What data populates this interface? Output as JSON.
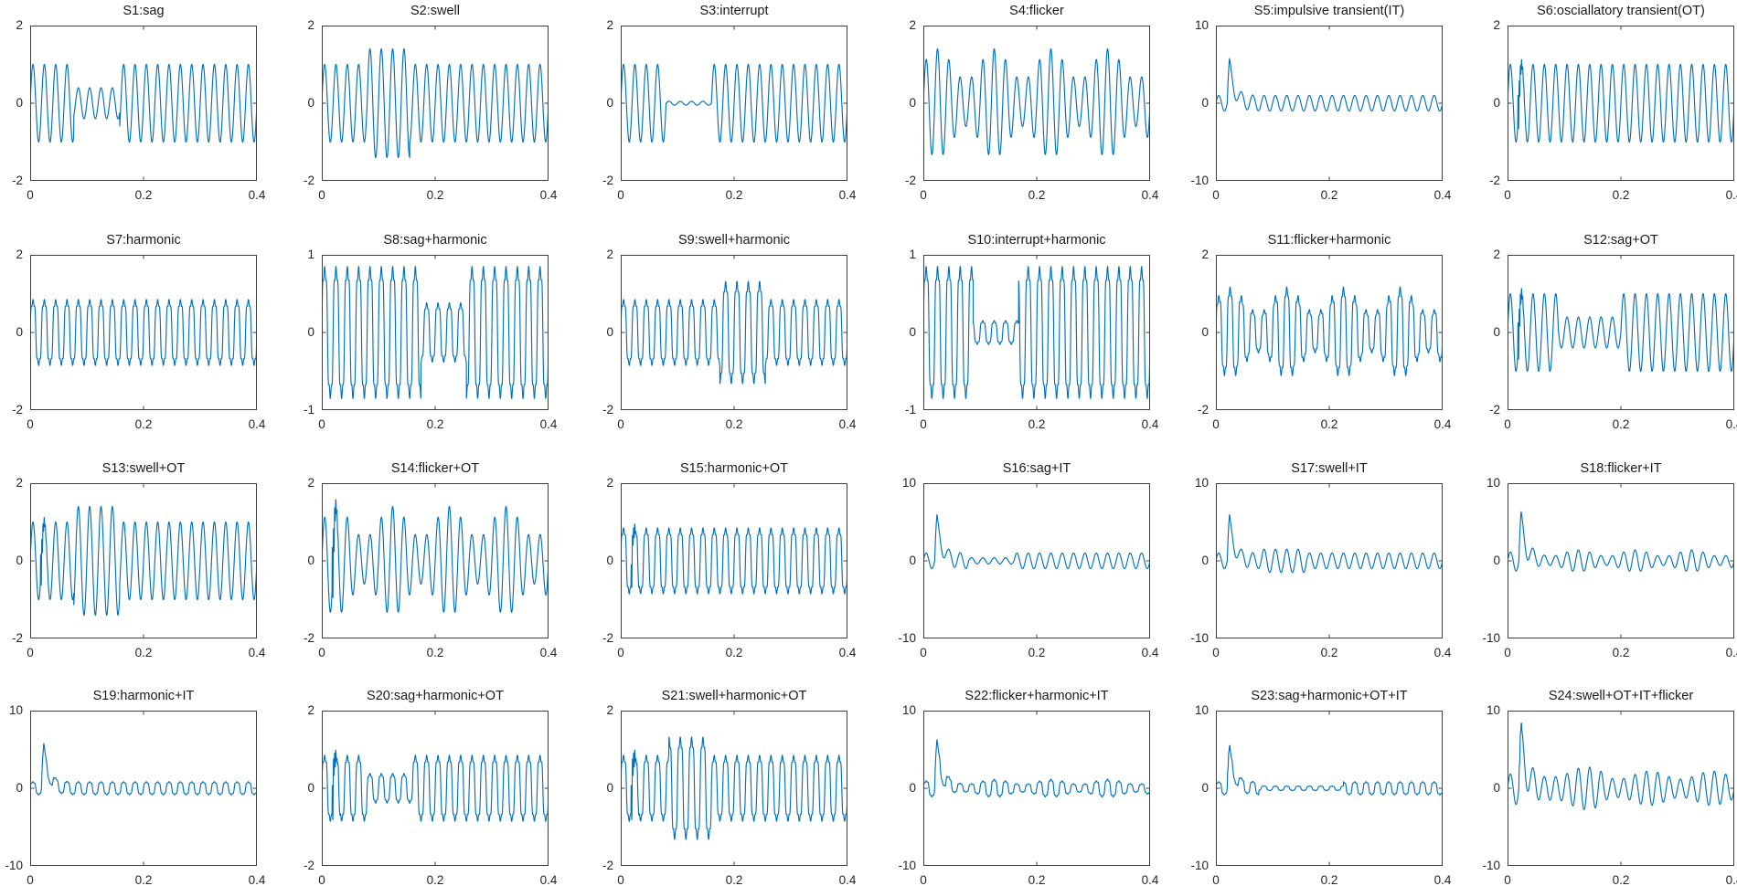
{
  "figure": {
    "background": "#ffffff",
    "line_color": "#0072BD",
    "axis_color": "#3f3f3f",
    "tick_label_color": "#262626",
    "title_color": "#1a1a1a",
    "rows": 4,
    "cols": 6
  },
  "chart_data": {
    "type": "line",
    "xlim": [
      0,
      0.4
    ],
    "xticks": [
      "0",
      "0.2",
      "0.4"
    ],
    "xtick_values": [
      0,
      0.2,
      0.4
    ],
    "duration_s": 0.4,
    "fundamental_hz": 50,
    "grid": false,
    "panels": [
      {
        "id": "S1",
        "title": "S1:sag",
        "ylim": [
          -2,
          2
        ],
        "yticks": [
          "2",
          "0",
          "-2"
        ],
        "base": "sine",
        "amp": 1,
        "window": {
          "kind": "sag",
          "from": 0.077,
          "to": 0.158,
          "gain": 0.4
        }
      },
      {
        "id": "S2",
        "title": "S2:swell",
        "ylim": [
          -2,
          2
        ],
        "yticks": [
          "2",
          "0",
          "-2"
        ],
        "base": "sine",
        "amp": 1,
        "window": {
          "kind": "swell",
          "from": 0.08,
          "to": 0.155,
          "gain": 1.4
        }
      },
      {
        "id": "S3",
        "title": "S3:interrupt",
        "ylim": [
          -2,
          2
        ],
        "yticks": [
          "2",
          "0",
          "-2"
        ],
        "base": "sine",
        "amp": 1,
        "window": {
          "kind": "interrupt",
          "from": 0.08,
          "to": 0.16,
          "gain": 0.05
        }
      },
      {
        "id": "S4",
        "title": "S4:flicker",
        "ylim": [
          -2,
          2
        ],
        "yticks": [
          "2",
          "0",
          "-2"
        ],
        "base": "sine",
        "amp": 1,
        "flicker": {
          "freq_hz": 10,
          "depth": 0.4
        }
      },
      {
        "id": "S5",
        "title": "S5:impulsive transient(IT)",
        "ylim": [
          -10,
          10
        ],
        "yticks": [
          "10",
          "0",
          "-10"
        ],
        "base": "sine",
        "amp": 1,
        "it": {
          "t0": 0.02,
          "peak": 4.8
        }
      },
      {
        "id": "S6",
        "title": "S6:osciallatory transient(OT)",
        "ylim": [
          -2,
          2
        ],
        "yticks": [
          "2",
          "0",
          "-2"
        ],
        "base": "sine",
        "amp": 1,
        "ot": {
          "t0": 0.018,
          "amp": 0.75
        }
      },
      {
        "id": "S7",
        "title": "S7:harmonic",
        "ylim": [
          -2,
          2
        ],
        "yticks": [
          "2",
          "0",
          "-2"
        ],
        "base": "harmonic",
        "amp": 1
      },
      {
        "id": "S8",
        "title": "S8:sag+harmonic",
        "ylim": [
          -1,
          1
        ],
        "yticks": [
          "1",
          "0",
          "-1"
        ],
        "base": "harmonic",
        "amp": 1,
        "window": {
          "kind": "sag",
          "from": 0.175,
          "to": 0.255,
          "gain": 0.45
        }
      },
      {
        "id": "S9",
        "title": "S9:swell+harmonic",
        "ylim": [
          -2,
          2
        ],
        "yticks": [
          "2",
          "0",
          "-2"
        ],
        "base": "harmonic",
        "amp": 1,
        "window": {
          "kind": "swell",
          "from": 0.175,
          "to": 0.255,
          "gain": 1.55
        }
      },
      {
        "id": "S10",
        "title": "S10:interrupt+harmonic",
        "ylim": [
          -1,
          1
        ],
        "yticks": [
          "1",
          "0",
          "-1"
        ],
        "base": "harmonic",
        "amp": 1,
        "window": {
          "kind": "interrupt",
          "from": 0.088,
          "to": 0.168,
          "gain": 0.18
        }
      },
      {
        "id": "S11",
        "title": "S11:flicker+harmonic",
        "ylim": [
          -2,
          2
        ],
        "yticks": [
          "2",
          "0",
          "-2"
        ],
        "base": "harmonic",
        "amp": 1,
        "flicker": {
          "freq_hz": 10,
          "depth": 0.38
        }
      },
      {
        "id": "S12",
        "title": "S12:sag+OT",
        "ylim": [
          -2,
          2
        ],
        "yticks": [
          "2",
          "0",
          "-2"
        ],
        "base": "sine",
        "amp": 1,
        "window": {
          "kind": "sag",
          "from": 0.09,
          "to": 0.2,
          "gain": 0.4
        },
        "ot": {
          "t0": 0.018,
          "amp": 0.8
        }
      },
      {
        "id": "S13",
        "title": "S13:swell+OT",
        "ylim": [
          -2,
          2
        ],
        "yticks": [
          "2",
          "0",
          "-2"
        ],
        "base": "sine",
        "amp": 1,
        "window": {
          "kind": "swell",
          "from": 0.077,
          "to": 0.158,
          "gain": 1.4
        },
        "ot": {
          "t0": 0.018,
          "amp": 0.7
        }
      },
      {
        "id": "S14",
        "title": "S14:flicker+OT",
        "ylim": [
          -2,
          2
        ],
        "yticks": [
          "2",
          "0",
          "-2"
        ],
        "base": "sine",
        "amp": 1,
        "flicker": {
          "freq_hz": 10,
          "depth": 0.4
        },
        "ot": {
          "t0": 0.018,
          "amp": 1.1
        }
      },
      {
        "id": "S15",
        "title": "S15:harmonic+OT",
        "ylim": [
          -2,
          2
        ],
        "yticks": [
          "2",
          "0",
          "-2"
        ],
        "base": "harmonic",
        "amp": 1,
        "ot": {
          "t0": 0.018,
          "amp": 0.6
        }
      },
      {
        "id": "S16",
        "title": "S16:sag+IT",
        "ylim": [
          -10,
          10
        ],
        "yticks": [
          "10",
          "0",
          "-10"
        ],
        "base": "sine",
        "amp": 1,
        "window": {
          "kind": "sag",
          "from": 0.08,
          "to": 0.16,
          "gain": 0.4
        },
        "it": {
          "t0": 0.02,
          "peak": 5
        }
      },
      {
        "id": "S17",
        "title": "S17:swell+IT",
        "ylim": [
          -10,
          10
        ],
        "yticks": [
          "10",
          "0",
          "-10"
        ],
        "base": "sine",
        "amp": 1,
        "window": {
          "kind": "swell",
          "from": 0.08,
          "to": 0.16,
          "gain": 1.5
        },
        "it": {
          "t0": 0.02,
          "peak": 5
        }
      },
      {
        "id": "S18",
        "title": "S18:flicker+IT",
        "ylim": [
          -10,
          10
        ],
        "yticks": [
          "10",
          "0",
          "-10"
        ],
        "base": "sine",
        "amp": 1,
        "flicker": {
          "freq_hz": 10,
          "depth": 0.4
        },
        "it": {
          "t0": 0.02,
          "peak": 5
        }
      },
      {
        "id": "S19",
        "title": "S19:harmonic+IT",
        "ylim": [
          -10,
          10
        ],
        "yticks": [
          "10",
          "0",
          "-10"
        ],
        "base": "harmonic",
        "amp": 1,
        "it": {
          "t0": 0.02,
          "peak": 5
        }
      },
      {
        "id": "S20",
        "title": "S20:sag+harmonic+OT",
        "ylim": [
          -2,
          2
        ],
        "yticks": [
          "2",
          "0",
          "-2"
        ],
        "base": "harmonic",
        "amp": 1,
        "window": {
          "kind": "sag",
          "from": 0.08,
          "to": 0.16,
          "gain": 0.45
        },
        "ot": {
          "t0": 0.018,
          "amp": 0.8
        }
      },
      {
        "id": "S21",
        "title": "S21:swell+harmonic+OT",
        "ylim": [
          -2,
          2
        ],
        "yticks": [
          "2",
          "0",
          "-2"
        ],
        "base": "harmonic",
        "amp": 1,
        "window": {
          "kind": "swell",
          "from": 0.085,
          "to": 0.16,
          "gain": 1.55
        },
        "ot": {
          "t0": 0.018,
          "amp": 0.8
        }
      },
      {
        "id": "S22",
        "title": "S22:flicker+harmonic+IT",
        "ylim": [
          -10,
          10
        ],
        "yticks": [
          "10",
          "0",
          "-10"
        ],
        "base": "harmonic",
        "amp": 1,
        "flicker": {
          "freq_hz": 10,
          "depth": 0.38
        },
        "it": {
          "t0": 0.02,
          "peak": 5.2
        }
      },
      {
        "id": "S23",
        "title": "S23:sag+harmonic+OT+IT",
        "ylim": [
          -10,
          10
        ],
        "yticks": [
          "10",
          "0",
          "-10"
        ],
        "base": "harmonic",
        "amp": 1,
        "window": {
          "kind": "sag",
          "from": 0.076,
          "to": 0.225,
          "gain": 0.35
        },
        "it": {
          "t0": 0.02,
          "peak": 4.8
        },
        "ot": {
          "t0": 0.02,
          "amp": 0.5
        }
      },
      {
        "id": "S24",
        "title": "S24:swell+OT+IT+flicker",
        "ylim": [
          -10,
          10
        ],
        "yticks": [
          "10",
          "0",
          "-10"
        ],
        "base": "sine",
        "amp": 1.7,
        "flicker": {
          "freq_hz": 9,
          "depth": 0.3
        },
        "window": {
          "kind": "swell",
          "from": 0.07,
          "to": 0.17,
          "gain": 1.25
        },
        "it": {
          "t0": 0.02,
          "peak": 6.3
        },
        "ot": {
          "t0": 0.02,
          "amp": 1.0
        }
      }
    ]
  }
}
